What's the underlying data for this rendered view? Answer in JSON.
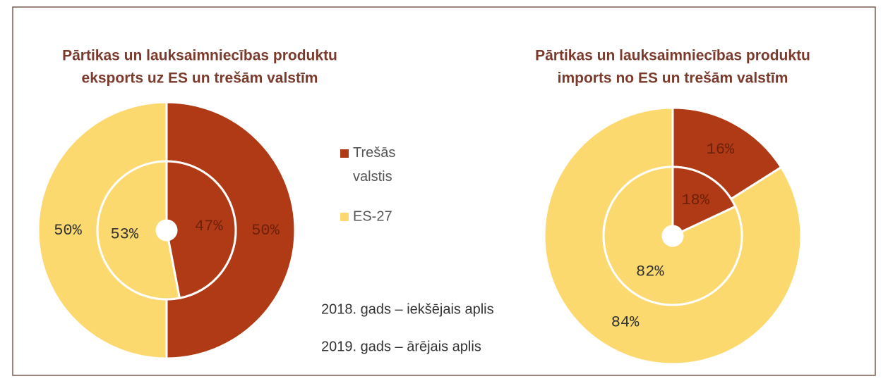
{
  "legend": [
    "Trešās valstis",
    "ES-27"
  ],
  "colors": [
    "#b13a16",
    "#fcd96f"
  ],
  "annotations": [
    "2018. gads – iekšējais aplis",
    "2019. gads – ārējais aplis"
  ],
  "chart_data": [
    {
      "type": "pie",
      "title": [
        "Pārtikas un lauksaimniecības produktu",
        "eksports uz ES un trešām valstīm"
      ],
      "inner_values": [
        47,
        53
      ],
      "inner_value_labels": [
        "47%",
        "53%"
      ],
      "outer_values": [
        50,
        50
      ],
      "outer_value_labels": [
        "50%",
        "50%"
      ]
    },
    {
      "type": "pie",
      "title": [
        "Pārtikas un lauksaimniecības produktu",
        "imports no ES un trešām valstīm"
      ],
      "inner_values": [
        18,
        82
      ],
      "inner_value_labels": [
        "18%",
        "82%"
      ],
      "outer_values": [
        16,
        84
      ],
      "outer_value_labels": [
        "16%",
        "84%"
      ]
    }
  ]
}
